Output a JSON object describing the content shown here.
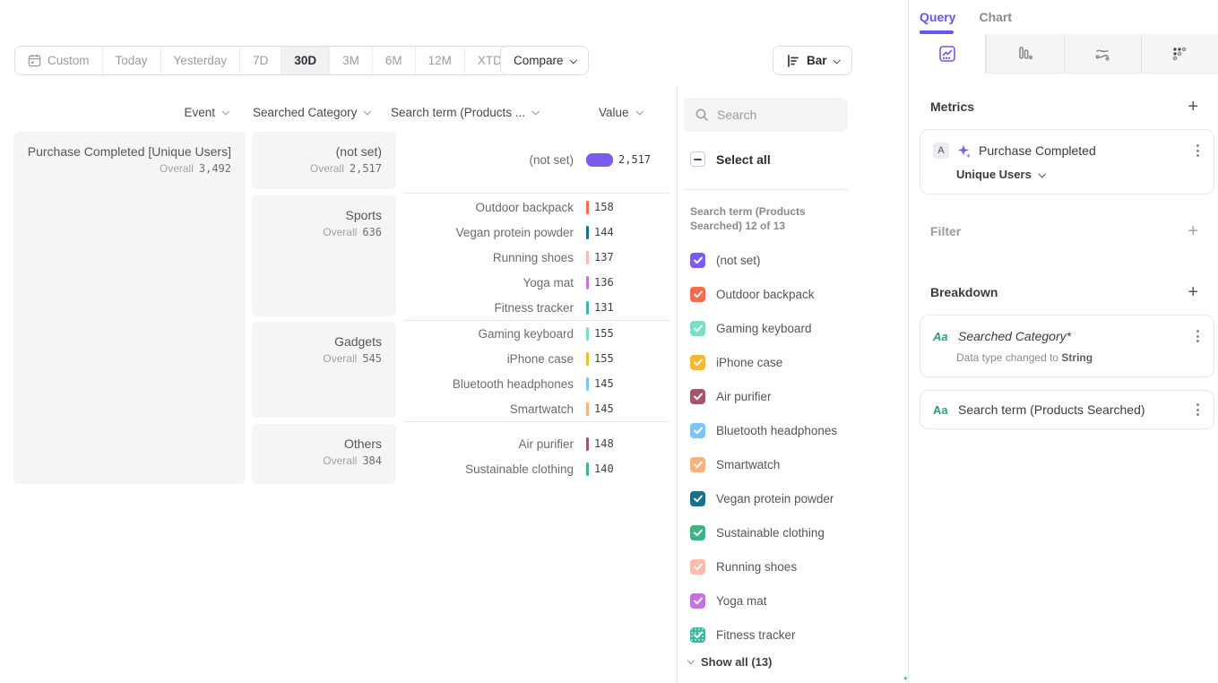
{
  "toolbar": {
    "date_ranges": [
      {
        "label": "Custom",
        "active": false
      },
      {
        "label": "Today",
        "active": false
      },
      {
        "label": "Yesterday",
        "active": false
      },
      {
        "label": "7D",
        "active": false
      },
      {
        "label": "30D",
        "active": true
      },
      {
        "label": "3M",
        "active": false
      },
      {
        "label": "6M",
        "active": false
      },
      {
        "label": "12M",
        "active": false
      },
      {
        "label": "XTD",
        "active": false
      }
    ],
    "compare_label": "Compare",
    "chart_type_label": "Bar"
  },
  "columns": {
    "event": "Event",
    "category": "Searched Category",
    "term": "Search term (Products ...",
    "value": "Value"
  },
  "labels": {
    "overall": "Overall"
  },
  "chart_data": {
    "type": "bar",
    "title": "Purchase Completed [Unique Users]",
    "max_value": 2517,
    "event": {
      "name": "Purchase Completed [Unique Users]",
      "overall": "3,492",
      "overall_num": 3492
    },
    "categories": [
      {
        "name": "(not set)",
        "overall": "2,517",
        "overall_num": 2517
      },
      {
        "name": "Sports",
        "overall": "636",
        "overall_num": 636
      },
      {
        "name": "Gadgets",
        "overall": "545",
        "overall_num": 545
      },
      {
        "name": "Others",
        "overall": "384",
        "overall_num": 384
      }
    ],
    "rows": [
      {
        "label": "(not set)",
        "group": "(not set)",
        "value": 2517,
        "display": "2,517",
        "color": "#7b5cf0"
      },
      {
        "label": "Outdoor backpack",
        "group": "Sports",
        "value": 158,
        "display": "158",
        "color": "#f9694b"
      },
      {
        "label": "Vegan protein powder",
        "group": "Sports",
        "value": 144,
        "display": "144",
        "color": "#17708f"
      },
      {
        "label": "Running shoes",
        "group": "Sports",
        "value": 137,
        "display": "137",
        "color": "#f9bcab"
      },
      {
        "label": "Yoga mat",
        "group": "Sports",
        "value": 136,
        "display": "136",
        "color": "#c473de"
      },
      {
        "label": "Fitness tracker",
        "group": "Sports",
        "value": 131,
        "display": "131",
        "color": "#3eb5a1"
      },
      {
        "label": "Gaming keyboard",
        "group": "Gadgets",
        "value": 155,
        "display": "155",
        "color": "#7cdec8"
      },
      {
        "label": "iPhone case",
        "group": "Gadgets",
        "value": 155,
        "display": "155",
        "color": "#f5b831"
      },
      {
        "label": "Bluetooth headphones",
        "group": "Gadgets",
        "value": 145,
        "display": "145",
        "color": "#7ec3f2"
      },
      {
        "label": "Smartwatch",
        "group": "Gadgets",
        "value": 145,
        "display": "145",
        "color": "#f9b27e"
      },
      {
        "label": "Air purifier",
        "group": "Others",
        "value": 148,
        "display": "148",
        "color": "#a85468"
      },
      {
        "label": "Sustainable clothing",
        "group": "Others",
        "value": 140,
        "display": "140",
        "color": "#3cb583"
      }
    ]
  },
  "legend": {
    "search_placeholder": "Search",
    "select_all_label": "Select all",
    "caption": "Search term (Products Searched) 12 of 13",
    "show_all_label": "Show all (13)",
    "items": [
      {
        "label": "(not set)",
        "color": "#7b5cf0",
        "checked": true
      },
      {
        "label": "Outdoor backpack",
        "color": "#f9694b",
        "checked": true
      },
      {
        "label": "Gaming keyboard",
        "color": "#7cdec8",
        "checked": true
      },
      {
        "label": "iPhone case",
        "color": "#f5b831",
        "checked": true
      },
      {
        "label": "Air purifier",
        "color": "#a85468",
        "checked": true
      },
      {
        "label": "Bluetooth headphones",
        "color": "#7ec3f2",
        "checked": true
      },
      {
        "label": "Smartwatch",
        "color": "#f9b27e",
        "checked": true
      },
      {
        "label": "Vegan protein powder",
        "color": "#17708f",
        "checked": true
      },
      {
        "label": "Sustainable clothing",
        "color": "#3cb583",
        "checked": true
      },
      {
        "label": "Running shoes",
        "color": "#f9bcab",
        "checked": true
      },
      {
        "label": "Yoga mat",
        "color": "#c473de",
        "checked": true
      },
      {
        "label": "Fitness tracker",
        "color": "#3eb5a1",
        "checked": true,
        "textured": true
      }
    ]
  },
  "sidebar": {
    "tabs": {
      "query": "Query",
      "chart": "Chart"
    },
    "icon_tabs": [
      "insights",
      "funnels",
      "flows",
      "retention"
    ],
    "metrics": {
      "heading": "Metrics",
      "card": {
        "badge": "A",
        "event": "Purchase Completed",
        "measure": "Unique Users"
      }
    },
    "filter": {
      "heading": "Filter"
    },
    "breakdown": {
      "heading": "Breakdown",
      "items": [
        {
          "icon": "Aa",
          "label": "Searched Category*",
          "note_prefix": "Data type changed to ",
          "note_value": "String"
        },
        {
          "icon": "Aa",
          "label": "Search term (Products Searched)"
        }
      ]
    },
    "accent": "#6355f6"
  }
}
